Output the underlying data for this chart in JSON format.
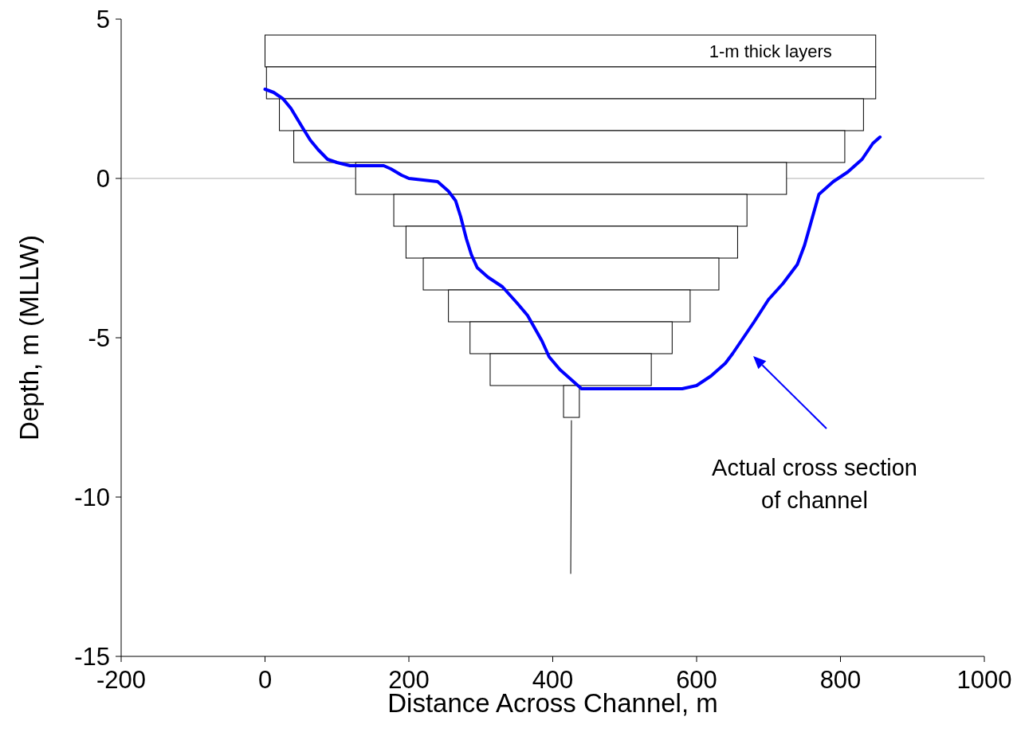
{
  "chart_data": {
    "type": "bar",
    "orientation": "horizontal",
    "xlabel": "Distance Across Channel, m",
    "ylabel": "Depth, m (MLLW)",
    "xlim": [
      -200,
      1000
    ],
    "xticks": [
      -200,
      0,
      200,
      400,
      600,
      800,
      1000
    ],
    "ylim": [
      -15,
      5
    ],
    "yticks": [
      -15,
      -10,
      -5,
      0,
      5
    ],
    "ref_lines": [
      {
        "axis": "y",
        "value": 0,
        "color": "#b0b0b0"
      }
    ],
    "annotations": [
      "1-m thick layers",
      "Actual cross section of channel"
    ],
    "series": [
      {
        "color": "#ffffff",
        "x": [
          4,
          3,
          2,
          1,
          0,
          -1,
          -2,
          -3,
          -4,
          -5,
          -6,
          -7
        ],
        "base": [
          0,
          2,
          20,
          40,
          126,
          179,
          196,
          220,
          255,
          285,
          313,
          415
        ],
        "values": [
          849,
          847,
          812,
          766,
          599,
          491,
          461,
          411,
          336,
          281,
          224,
          22
        ]
      },
      {
        "type": "line",
        "color": "#0000ff",
        "values": [
          0,
          12,
          25,
          36,
          44,
          52,
          63,
          74,
          87,
          100,
          118,
          150,
          165,
          175,
          190,
          200,
          240,
          255,
          265,
          272,
          280,
          287,
          295,
          310,
          330,
          350,
          365,
          375,
          385,
          395,
          410,
          425,
          440,
          500,
          540,
          580,
          600,
          620,
          640,
          650,
          665,
          680,
          700,
          720,
          740,
          750,
          760,
          770,
          790,
          810,
          830,
          845,
          855
        ],
        "x": [
          2.8,
          2.7,
          2.5,
          2.2,
          1.9,
          1.6,
          1.2,
          0.9,
          0.6,
          0.5,
          0.4,
          0.4,
          0.4,
          0.3,
          0.1,
          0,
          -0.1,
          -0.4,
          -0.7,
          -1.2,
          -1.9,
          -2.4,
          -2.8,
          -3.1,
          -3.4,
          -3.9,
          -4.3,
          -4.7,
          -5.1,
          -5.6,
          -6,
          -6.3,
          -6.6,
          -6.6,
          -6.6,
          -6.6,
          -6.5,
          -6.2,
          -5.8,
          -5.5,
          -5,
          -4.5,
          -3.8,
          -3.3,
          -2.7,
          -2.1,
          -1.3,
          -0.5,
          -0.1,
          0.2,
          0.6,
          1.1,
          1.3
        ]
      },
      {
        "type": "line",
        "color": "#000000",
        "values": [
          426,
          425
        ],
        "x": [
          -7.6,
          -12.4
        ]
      }
    ]
  }
}
